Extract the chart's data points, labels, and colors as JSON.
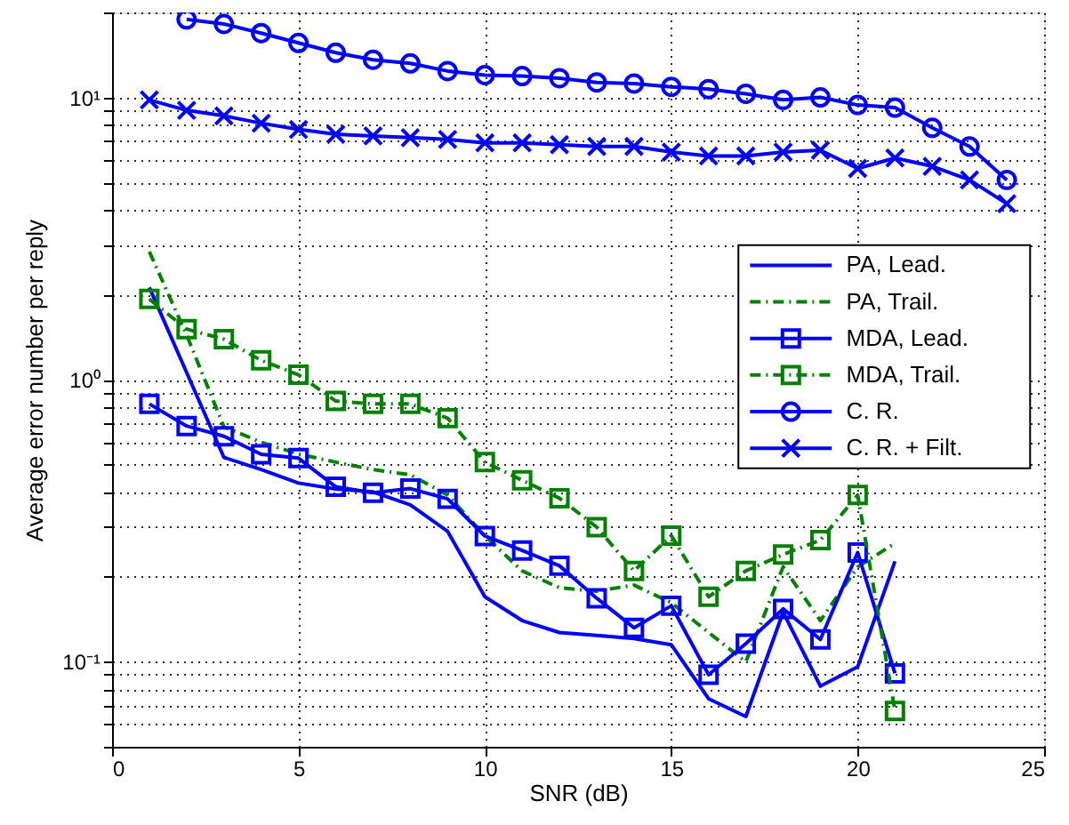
{
  "chart_data": {
    "type": "line",
    "xlabel": "SNR (dB)",
    "ylabel": "Average error number per reply",
    "x": [
      1,
      2,
      3,
      4,
      5,
      6,
      7,
      8,
      9,
      10,
      11,
      12,
      13,
      14,
      15,
      16,
      17,
      18,
      19,
      20,
      21
    ],
    "series": [
      {
        "name": "PA, Lead.",
        "color": "#0000ff",
        "line_style": "solid",
        "marker": "none",
        "values": [
          2.12,
          1.06,
          0.53,
          0.48,
          0.43,
          0.41,
          0.4,
          0.36,
          0.29,
          0.17,
          0.14,
          0.127,
          0.124,
          0.121,
          0.115,
          0.074,
          0.064,
          0.15,
          0.082,
          0.096,
          0.227
        ]
      },
      {
        "name": "PA, Trail.",
        "color": "#008000",
        "line_style": "dashed",
        "marker": "none",
        "values": [
          2.84,
          1.44,
          0.68,
          0.6,
          0.545,
          0.51,
          0.48,
          0.46,
          0.39,
          0.28,
          0.21,
          0.183,
          0.178,
          0.187,
          0.162,
          0.127,
          0.1,
          0.217,
          0.14,
          0.217,
          0.263
        ]
      },
      {
        "name": "MDA, Lead.",
        "color": "#0000ff",
        "line_style": "solid",
        "marker": "square",
        "values": [
          0.82,
          0.685,
          0.63,
          0.544,
          0.527,
          0.417,
          0.397,
          0.411,
          0.378,
          0.279,
          0.248,
          0.219,
          0.168,
          0.132,
          0.158,
          0.09,
          0.116,
          0.154,
          0.12,
          0.244,
          0.091
        ]
      },
      {
        "name": "MDA, Trail.",
        "color": "#008000",
        "line_style": "dashed",
        "marker": "square",
        "values": [
          1.93,
          1.51,
          1.39,
          1.17,
          1.04,
          0.84,
          0.82,
          0.82,
          0.73,
          0.51,
          0.44,
          0.38,
          0.3,
          0.21,
          0.28,
          0.17,
          0.21,
          0.24,
          0.27,
          0.39,
          0.067
        ]
      },
      {
        "name": "C. R.",
        "color": "#0000ff",
        "line_style": "solid",
        "marker": "circle",
        "x": [
          2,
          3,
          4,
          5,
          6,
          7,
          8,
          9,
          10,
          11,
          12,
          13,
          14,
          15,
          16,
          17,
          18,
          19,
          20,
          21,
          22,
          23,
          24
        ],
        "values": [
          18.9,
          18.2,
          16.9,
          15.6,
          14.4,
          13.6,
          13.2,
          12.4,
          12.0,
          11.9,
          11.7,
          11.3,
          11.2,
          10.9,
          10.7,
          10.3,
          9.8,
          10.0,
          9.4,
          9.2,
          7.8,
          6.7,
          5.1
        ]
      },
      {
        "name": "C. R. + Filt.",
        "color": "#0000ff",
        "line_style": "solid",
        "marker": "cross",
        "x": [
          1,
          2,
          3,
          4,
          5,
          6,
          7,
          8,
          9,
          10,
          11,
          12,
          13,
          14,
          15,
          16,
          17,
          18,
          19,
          20,
          21,
          22,
          23,
          24
        ],
        "values": [
          9.8,
          9.0,
          8.6,
          8.1,
          7.7,
          7.4,
          7.3,
          7.2,
          7.1,
          6.9,
          6.9,
          6.8,
          6.7,
          6.7,
          6.4,
          6.2,
          6.2,
          6.4,
          6.5,
          5.6,
          6.1,
          5.7,
          5.1,
          4.2
        ]
      }
    ],
    "xlim": [
      0,
      25
    ],
    "xticks": [
      0,
      5,
      10,
      15,
      20,
      25
    ],
    "log": true,
    "ylim": [
      0.05,
      20
    ],
    "yticks": [
      {
        "value": 0.05,
        "label": null
      },
      {
        "value": 0.06,
        "label": null
      },
      {
        "value": 0.07,
        "label": null
      },
      {
        "value": 0.08,
        "label": null
      },
      {
        "value": 0.09,
        "label": null
      },
      {
        "value": 0.1,
        "label": "10⁻¹"
      },
      {
        "value": 0.2,
        "label": null
      },
      {
        "value": 0.3,
        "label": null
      },
      {
        "value": 0.4,
        "label": null
      },
      {
        "value": 0.5,
        "label": null
      },
      {
        "value": 0.6,
        "label": null
      },
      {
        "value": 0.7,
        "label": null
      },
      {
        "value": 0.8,
        "label": null
      },
      {
        "value": 0.9,
        "label": null
      },
      {
        "value": 1,
        "label": "10⁰"
      },
      {
        "value": 2,
        "label": null
      },
      {
        "value": 3,
        "label": null
      },
      {
        "value": 4,
        "label": null
      },
      {
        "value": 5,
        "label": null
      },
      {
        "value": 6,
        "label": null
      },
      {
        "value": 7,
        "label": null
      },
      {
        "value": 8,
        "label": null
      },
      {
        "value": 9,
        "label": null
      },
      {
        "value": 10,
        "label": "10¹"
      },
      {
        "value": 20,
        "label": null
      }
    ],
    "grid": true,
    "legend": "right"
  }
}
